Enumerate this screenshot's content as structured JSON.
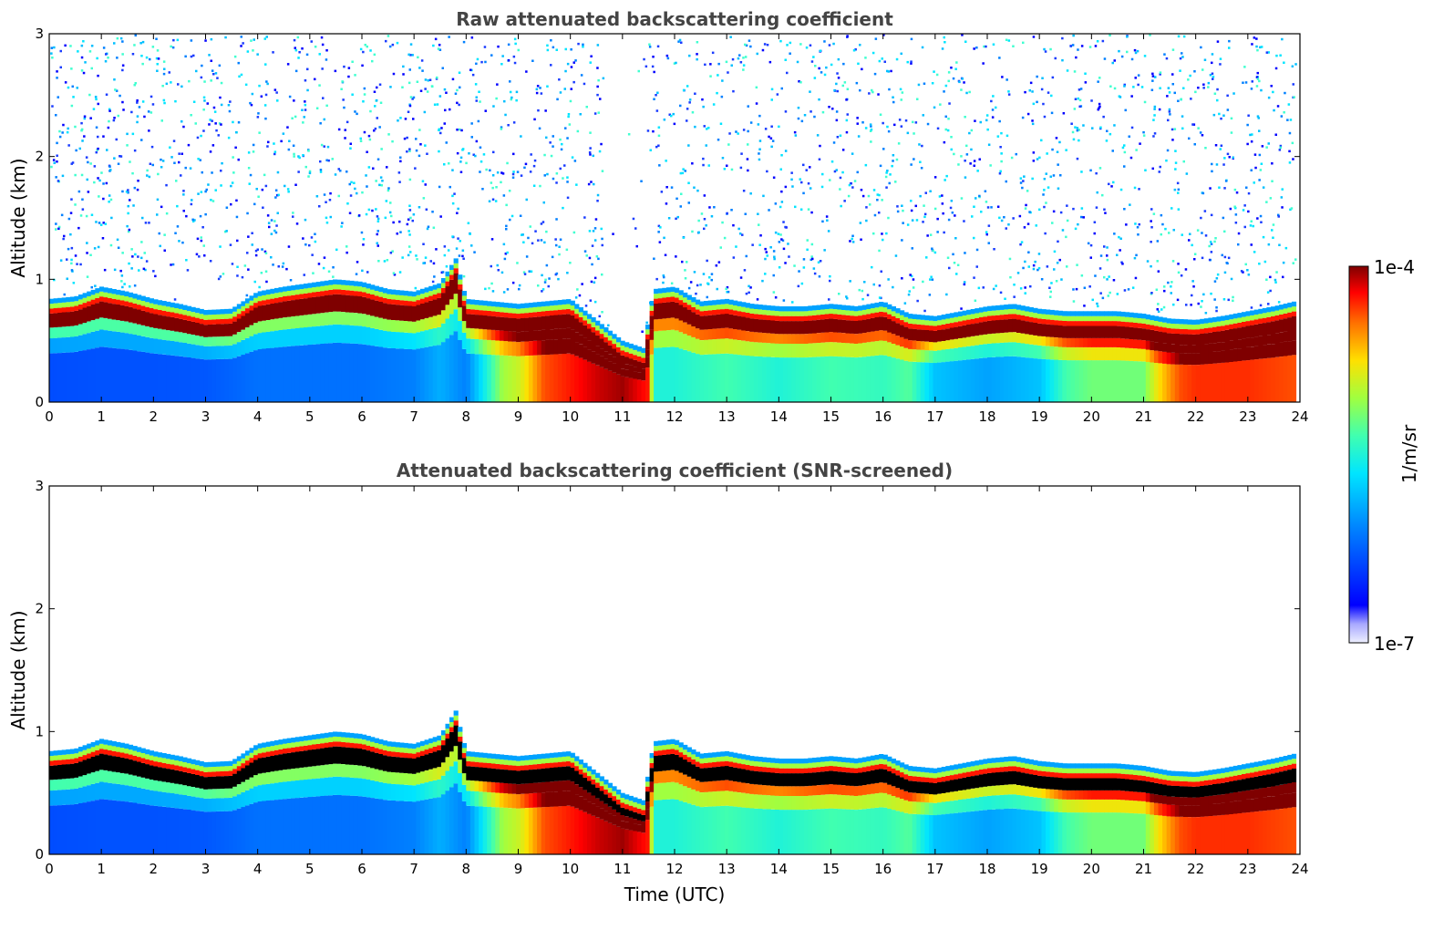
{
  "chart_data": [
    {
      "type": "heatmap",
      "title": "Raw attenuated backscattering coefficient",
      "xlabel": "",
      "ylabel": "Altitude (km)",
      "xlim": [
        0,
        24
      ],
      "ylim": [
        0,
        3
      ],
      "xticks": [
        0,
        1,
        2,
        3,
        4,
        5,
        6,
        7,
        8,
        9,
        10,
        11,
        12,
        13,
        14,
        15,
        16,
        17,
        18,
        19,
        20,
        21,
        22,
        23,
        24
      ],
      "yticks": [
        0,
        1,
        2,
        3
      ],
      "screened": false,
      "layer_top_km": {
        "hours": [
          0,
          0.5,
          1,
          1.5,
          2,
          2.5,
          3,
          3.5,
          4,
          4.5,
          5,
          5.5,
          6,
          6.5,
          7,
          7.5,
          7.8,
          8,
          8.5,
          9,
          9.5,
          10,
          10.5,
          11,
          11.4,
          11.6,
          12,
          12.5,
          13,
          13.5,
          14,
          14.5,
          15,
          15.5,
          16,
          16.5,
          17,
          17.5,
          18,
          18.5,
          19,
          19.5,
          20,
          20.5,
          21,
          21.5,
          22,
          22.5,
          23,
          23.5,
          23.9
        ],
        "values": [
          0.72,
          0.74,
          0.82,
          0.78,
          0.72,
          0.68,
          0.63,
          0.64,
          0.78,
          0.82,
          0.85,
          0.88,
          0.86,
          0.8,
          0.78,
          0.85,
          1.05,
          0.72,
          0.7,
          0.68,
          0.7,
          0.72,
          0.55,
          0.38,
          0.32,
          0.8,
          0.82,
          0.7,
          0.72,
          0.68,
          0.66,
          0.66,
          0.68,
          0.66,
          0.7,
          0.6,
          0.58,
          0.62,
          0.66,
          0.68,
          0.64,
          0.62,
          0.62,
          0.62,
          0.6,
          0.56,
          0.55,
          0.58,
          0.62,
          0.66,
          0.7
        ]
      },
      "colorbar": {
        "label": "1/m/sr",
        "min_label": "1e-7",
        "max_label": "1e-4",
        "scale": "log",
        "colormap": "jet"
      }
    },
    {
      "type": "heatmap",
      "title": "Attenuated backscattering coefficient (SNR-screened)",
      "xlabel": "Time (UTC)",
      "ylabel": "Altitude (km)",
      "xlim": [
        0,
        24
      ],
      "ylim": [
        0,
        3
      ],
      "xticks": [
        0,
        1,
        2,
        3,
        4,
        5,
        6,
        7,
        8,
        9,
        10,
        11,
        12,
        13,
        14,
        15,
        16,
        17,
        18,
        19,
        20,
        21,
        22,
        23,
        24
      ],
      "yticks": [
        0,
        1,
        2,
        3
      ],
      "screened": true,
      "layer_top_km": {
        "hours": [
          0,
          0.5,
          1,
          1.5,
          2,
          2.5,
          3,
          3.5,
          4,
          4.5,
          5,
          5.5,
          6,
          6.5,
          7,
          7.5,
          7.8,
          8,
          8.5,
          9,
          9.5,
          10,
          10.5,
          11,
          11.4,
          11.6,
          12,
          12.5,
          13,
          13.5,
          14,
          14.5,
          15,
          15.5,
          16,
          16.5,
          17,
          17.5,
          18,
          18.5,
          19,
          19.5,
          20,
          20.5,
          21,
          21.5,
          22,
          22.5,
          23,
          23.5,
          23.9
        ],
        "values": [
          0.72,
          0.74,
          0.82,
          0.78,
          0.72,
          0.68,
          0.63,
          0.64,
          0.78,
          0.82,
          0.85,
          0.88,
          0.86,
          0.8,
          0.78,
          0.85,
          1.05,
          0.72,
          0.7,
          0.68,
          0.7,
          0.72,
          0.55,
          0.38,
          0.32,
          0.8,
          0.82,
          0.7,
          0.72,
          0.68,
          0.66,
          0.66,
          0.68,
          0.66,
          0.7,
          0.6,
          0.58,
          0.62,
          0.66,
          0.68,
          0.64,
          0.62,
          0.62,
          0.62,
          0.6,
          0.56,
          0.55,
          0.58,
          0.62,
          0.66,
          0.7
        ]
      },
      "colorbar": {
        "label": "1/m/sr",
        "min_label": "1e-7",
        "max_label": "1e-4",
        "scale": "log",
        "colormap": "jet"
      }
    }
  ],
  "near_surface_intensity": {
    "hours": [
      0,
      1,
      2,
      3,
      4,
      5,
      6,
      7,
      7.5,
      8,
      8.4,
      8.7,
      9,
      9.5,
      10,
      10.5,
      11,
      11.5,
      11.6,
      12,
      13,
      14,
      15,
      16,
      16.5,
      17,
      18,
      19,
      19.5,
      20,
      21,
      21.3,
      21.7,
      22,
      23,
      23.9
    ],
    "values": [
      0.15,
      0.16,
      0.16,
      0.17,
      0.22,
      0.22,
      0.22,
      0.25,
      0.32,
      0.25,
      0.45,
      0.6,
      0.65,
      0.85,
      0.9,
      0.95,
      0.98,
      0.9,
      0.45,
      0.45,
      0.5,
      0.45,
      0.5,
      0.48,
      0.52,
      0.35,
      0.3,
      0.35,
      0.5,
      0.55,
      0.55,
      0.72,
      0.85,
      0.88,
      0.88,
      0.85
    ]
  },
  "colors": {
    "title": "#444444",
    "axis": "#000000",
    "background": "#ffffff",
    "layer_core_raw": "#7f0000",
    "layer_core_screened": "#000000"
  }
}
